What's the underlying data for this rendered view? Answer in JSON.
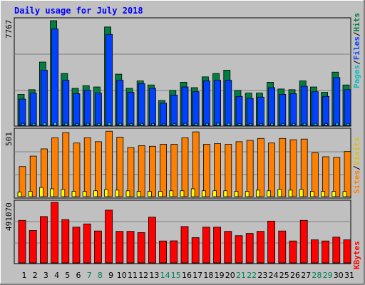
{
  "chart_data": [
    {
      "type": "bar",
      "title": "Daily usage for July 2018",
      "ymax_label": "7767",
      "ymax": 7767,
      "categories": [
        "1",
        "2",
        "3",
        "4",
        "5",
        "6",
        "7",
        "8",
        "9",
        "10",
        "11",
        "12",
        "13",
        "14",
        "15",
        "16",
        "17",
        "18",
        "19",
        "20",
        "21",
        "22",
        "23",
        "24",
        "25",
        "26",
        "27",
        "28",
        "29",
        "30",
        "31"
      ],
      "weekend_days": [
        "7",
        "8",
        "14",
        "15",
        "21",
        "22",
        "28",
        "29"
      ],
      "series": [
        {
          "name": "Hits",
          "color": "#008040",
          "values": [
            2300,
            2650,
            4700,
            7767,
            3850,
            2750,
            2950,
            2850,
            7300,
            3800,
            2750,
            3300,
            3000,
            1850,
            2600,
            3200,
            2800,
            3600,
            3850,
            4100,
            2600,
            2400,
            2400,
            3200,
            2700,
            2650,
            3300,
            2850,
            2450,
            3950,
            3000
          ]
        },
        {
          "name": "Files",
          "color": "#0040ff",
          "values": [
            1950,
            2400,
            4100,
            7150,
            3350,
            2350,
            2600,
            2400,
            6750,
            3350,
            2450,
            3100,
            2750,
            1650,
            2250,
            2850,
            2500,
            3300,
            3350,
            3350,
            2150,
            2000,
            2100,
            2800,
            2300,
            2350,
            2900,
            2500,
            2150,
            3550,
            2650
          ]
        },
        {
          "name": "Pages",
          "color": "#00e0ff",
          "values": [
            140,
            150,
            180,
            220,
            160,
            130,
            150,
            140,
            190,
            150,
            130,
            140,
            140,
            110,
            130,
            150,
            140,
            150,
            160,
            160,
            130,
            120,
            120,
            150,
            140,
            140,
            150,
            140,
            130,
            170,
            140
          ]
        }
      ],
      "right_label": {
        "parts": [
          "Pages",
          "/",
          "Files",
          "/",
          "Hits"
        ],
        "colors": [
          "#00c0c0",
          "#000000",
          "#0040ff",
          "#000000",
          "#008040"
        ]
      }
    },
    {
      "type": "bar",
      "ymax_label": "501",
      "ymax": 501,
      "series": [
        {
          "name": "Sites",
          "color": "#ff8000",
          "values": [
            230,
            310,
            365,
            450,
            490,
            410,
            450,
            420,
            500,
            455,
            375,
            390,
            385,
            400,
            400,
            450,
            495,
            400,
            405,
            400,
            420,
            430,
            445,
            410,
            445,
            435,
            440,
            335,
            305,
            300,
            345
          ]
        },
        {
          "name": "Visits",
          "color": "#ffff00",
          "values": [
            35,
            40,
            70,
            60,
            55,
            40,
            40,
            45,
            55,
            50,
            45,
            40,
            40,
            40,
            45,
            45,
            60,
            45,
            45,
            45,
            40,
            40,
            50,
            45,
            55,
            50,
            55,
            40,
            40,
            40,
            40
          ]
        }
      ],
      "right_label": {
        "parts": [
          "Sites",
          "/",
          "Visits"
        ],
        "colors": [
          "#ff8000",
          "#000000",
          "#e0c000"
        ]
      }
    },
    {
      "type": "bar",
      "ymax_label": "491070",
      "ymax": 491070,
      "series": [
        {
          "name": "KBytes",
          "color": "#ff0000",
          "values": [
            345000,
            263000,
            376000,
            491070,
            351000,
            290000,
            316000,
            259000,
            428000,
            256000,
            256000,
            246000,
            371000,
            178000,
            179000,
            295000,
            205000,
            290000,
            290000,
            256000,
            221000,
            239000,
            256000,
            339000,
            259000,
            178000,
            345000,
            187000,
            178000,
            209000,
            187000
          ]
        }
      ],
      "right_label": {
        "parts": [
          "KBytes"
        ],
        "colors": [
          "#ff0000"
        ]
      }
    }
  ]
}
